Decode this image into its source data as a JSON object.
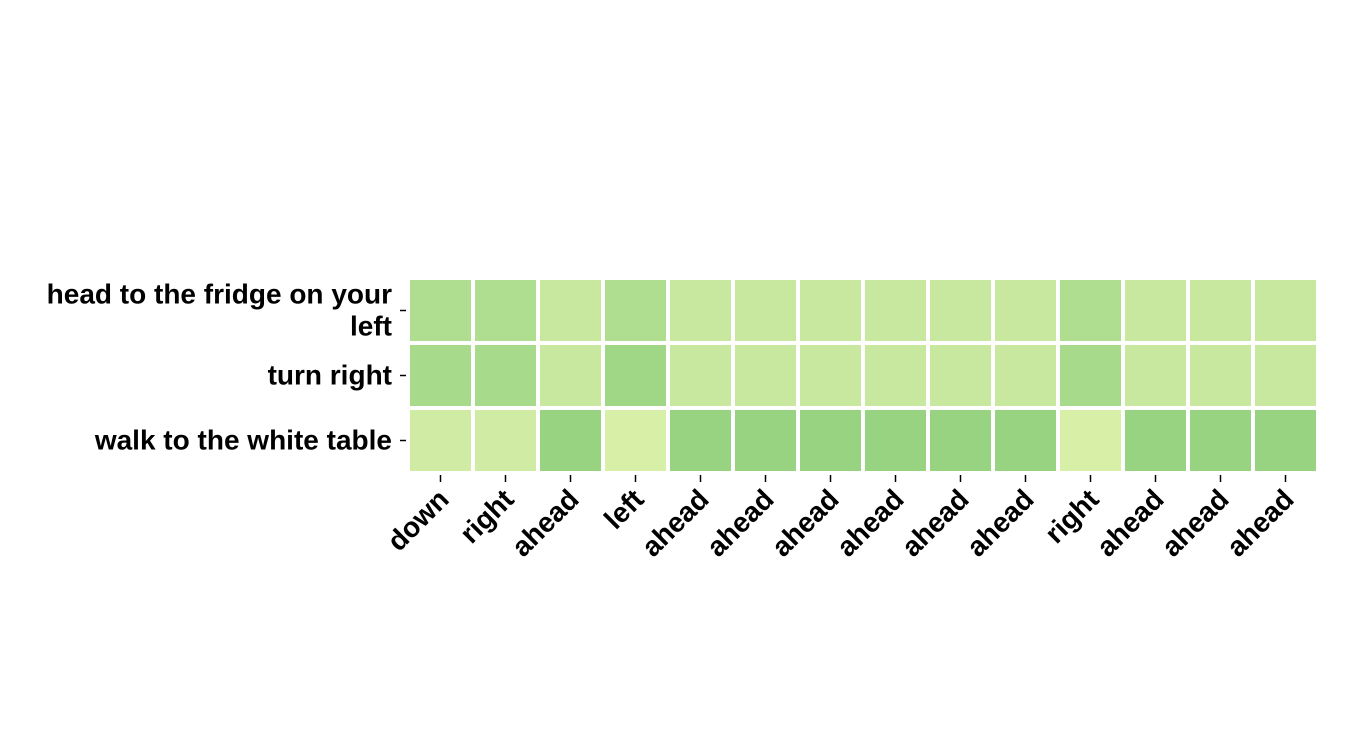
{
  "chart_data": {
    "type": "heatmap",
    "title": "",
    "xlabel": "",
    "ylabel": "",
    "rows": [
      [
        "head to the fridge on your",
        "left"
      ],
      [
        "turn right"
      ],
      [
        "walk to the white table"
      ]
    ],
    "row_labels": [
      "head to the fridge on your left",
      "turn right",
      "walk to the white table"
    ],
    "columns": [
      "down",
      "right",
      "ahead",
      "left",
      "ahead",
      "ahead",
      "ahead",
      "ahead",
      "ahead",
      "ahead",
      "right",
      "ahead",
      "ahead",
      "ahead"
    ],
    "values": [
      [
        0.4,
        0.4,
        0.25,
        0.4,
        0.25,
        0.25,
        0.25,
        0.25,
        0.25,
        0.25,
        0.4,
        0.25,
        0.25,
        0.25
      ],
      [
        0.45,
        0.45,
        0.25,
        0.5,
        0.25,
        0.25,
        0.25,
        0.25,
        0.25,
        0.25,
        0.45,
        0.25,
        0.25,
        0.25
      ],
      [
        0.2,
        0.2,
        0.55,
        0.15,
        0.55,
        0.55,
        0.55,
        0.55,
        0.55,
        0.55,
        0.15,
        0.55,
        0.55,
        0.55
      ]
    ],
    "colormap": [
      "#d8efa8",
      "#b7e196",
      "#98d382"
    ],
    "grid": false,
    "legend": "none"
  }
}
